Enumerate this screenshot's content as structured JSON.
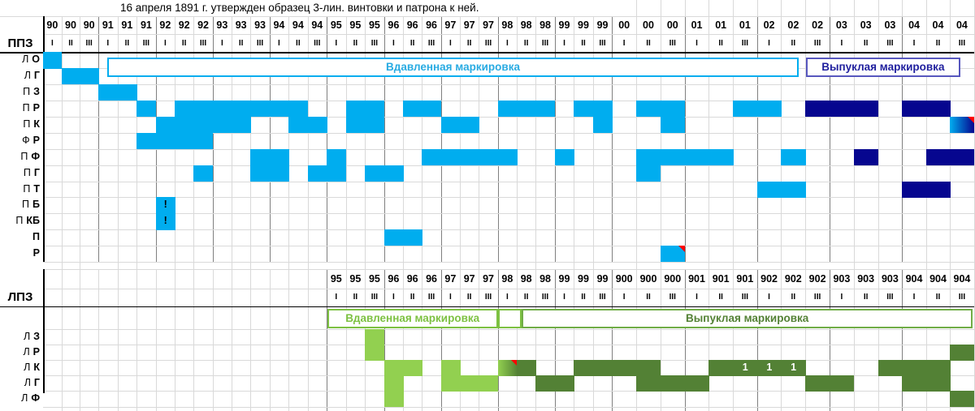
{
  "colors": {
    "impressed_blue": "#00ADEF",
    "raised_navy": "#06068F",
    "impressed_green_light": "#92D050",
    "raised_green_dark": "#538135",
    "flag_red": "#FF0000",
    "grid_faint": "#D9D9D9",
    "grid_year": "#808080",
    "grid_black": "#000000",
    "legend_blue_border": "#00ADEF",
    "legend_blue_text": "#29ABE2",
    "legend_navy_border": "#5757BE",
    "legend_navy_text": "#1F1F9E",
    "legend_green_light": "#7DC142",
    "legend_green_border": "#70AD47",
    "legend_green_dark_text": "#538135"
  },
  "chart_data": {
    "type": "heatmap",
    "title": "16 апреля 1891 г. утвержден образец 3-лин. винтовки и патрона к ней.",
    "x_unit": "year thirds (I, II, III) from 1890 to 1904",
    "grid": true,
    "terts": [
      "I",
      "II",
      "III"
    ],
    "sections": [
      {
        "factory_label": "ППЗ",
        "years": [
          "90",
          "91",
          "92",
          "93",
          "94",
          "95",
          "96",
          "97",
          "98",
          "99",
          "00",
          "01",
          "02",
          "03",
          "04"
        ],
        "terts": [
          "I",
          "II",
          "III"
        ],
        "legend_boxes": [
          {
            "label": "Вдавленная маркировка",
            "style": "blue"
          },
          {
            "label": "Выпуклая маркировка",
            "style": "navy"
          }
        ],
        "rows": [
          {
            "label": "Л О",
            "fills": [
              {
                "style": "cyan",
                "cols": [
                  "90-I"
                ]
              }
            ]
          },
          {
            "label": "Л Г",
            "fills": [
              {
                "style": "cyan",
                "cols": [
                  "90-II",
                  "90-III"
                ]
              }
            ]
          },
          {
            "label": "П З",
            "fills": [
              {
                "style": "cyan",
                "cols": [
                  "91-I",
                  "91-II"
                ]
              }
            ]
          },
          {
            "label": "П Р",
            "fills": [
              {
                "style": "cyan",
                "cols": [
                  "91-III",
                  "92-II",
                  "92-III",
                  "93-I",
                  "93-II",
                  "93-III",
                  "94-I",
                  "94-II",
                  "95-II",
                  "95-III",
                  "96-II",
                  "96-III",
                  "98-I",
                  "98-II",
                  "98-III",
                  "99-II",
                  "99-III",
                  "00-II",
                  "00-III",
                  "01-III",
                  "02-I"
                ]
              },
              {
                "style": "navy",
                "cols": [
                  "02-III",
                  "03-I",
                  "03-II",
                  "04-I",
                  "04-II"
                ]
              }
            ]
          },
          {
            "label": "П К",
            "fills": [
              {
                "style": "cyan",
                "cols": [
                  "92-I",
                  "92-II",
                  "92-III",
                  "93-I",
                  "93-II",
                  "94-II",
                  "94-III",
                  "95-II",
                  "95-III",
                  "97-I",
                  "97-II",
                  "99-III",
                  "00-III"
                ]
              },
              {
                "style": "gradient_cyan_navy",
                "cols": [
                  "04-III"
                ],
                "corner": "red"
              }
            ]
          },
          {
            "label": "Ф Р",
            "fills": [
              {
                "style": "cyan",
                "cols": [
                  "91-III",
                  "92-I",
                  "92-II",
                  "92-III"
                ]
              }
            ]
          },
          {
            "label": "П Ф",
            "fills": [
              {
                "style": "cyan",
                "cols": [
                  "93-III",
                  "94-I",
                  "95-I",
                  "96-III",
                  "97-I",
                  "97-II",
                  "97-III",
                  "98-I",
                  "99-I",
                  "00-II",
                  "00-III",
                  "01-I",
                  "01-II",
                  "02-II"
                ]
              },
              {
                "style": "navy",
                "cols": [
                  "03-II",
                  "04-II",
                  "04-III"
                ]
              }
            ]
          },
          {
            "label": "П Г",
            "fills": [
              {
                "style": "cyan",
                "cols": [
                  "92-III",
                  "93-III",
                  "94-I",
                  "94-III",
                  "95-I",
                  "95-III",
                  "96-I",
                  "00-II"
                ]
              }
            ]
          },
          {
            "label": "П Т",
            "fills": [
              {
                "style": "cyan",
                "cols": [
                  "02-I",
                  "02-II"
                ]
              },
              {
                "style": "navy",
                "cols": [
                  "04-I",
                  "04-II"
                ]
              }
            ]
          },
          {
            "label": "П Б",
            "fills": [
              {
                "style": "cyan",
                "cols": [
                  "92-I"
                ],
                "text": "!"
              }
            ]
          },
          {
            "label": "П КБ",
            "fills": [
              {
                "style": "cyan",
                "cols": [
                  "92-I"
                ],
                "text": "!"
              }
            ]
          },
          {
            "label": "П",
            "fills": [
              {
                "style": "cyan",
                "cols": [
                  "96-I",
                  "96-II"
                ]
              }
            ]
          },
          {
            "label": "Р",
            "fills": [
              {
                "style": "cyan",
                "cols": [
                  "00-III"
                ],
                "corner": "red"
              }
            ]
          }
        ]
      },
      {
        "factory_label": "ЛПЗ",
        "years": [
          "95",
          "96",
          "97",
          "98",
          "99",
          "900",
          "901",
          "902",
          "903",
          "904"
        ],
        "terts": [
          "I",
          "II",
          "III"
        ],
        "legend_boxes": [
          {
            "label": "Вдавленная маркировка",
            "style": "green_light"
          },
          {
            "label": "",
            "style": "green_light"
          },
          {
            "label": "Выпуклая маркировка",
            "style": "green_dark"
          }
        ],
        "rows": [
          {
            "label": "Л З",
            "fills": [
              {
                "style": "green_light",
                "cols": [
                  "95-III"
                ]
              }
            ]
          },
          {
            "label": "Л Р",
            "fills": [
              {
                "style": "green_light",
                "cols": [
                  "95-III"
                ]
              },
              {
                "style": "green_dark",
                "cols": [
                  "904-III"
                ]
              }
            ]
          },
          {
            "label": "Л К",
            "fills": [
              {
                "style": "green_light",
                "cols": [
                  "96-I",
                  "96-II",
                  "97-I"
                ]
              },
              {
                "style": "gradient_green",
                "cols": [
                  "98-I"
                ],
                "corner": "red"
              },
              {
                "style": "green_dark",
                "cols": [
                  "98-II",
                  "99-II",
                  "99-III",
                  "900-I",
                  "900-II",
                  "901-II",
                  "903-III",
                  "904-I",
                  "904-II"
                ]
              },
              {
                "style": "green_dark",
                "cols": [
                  "901-III",
                  "902-I",
                  "902-II"
                ],
                "text": "1"
              }
            ]
          },
          {
            "label": "Л Г",
            "fills": [
              {
                "style": "green_light",
                "cols": [
                  "96-I",
                  "97-I",
                  "97-II",
                  "97-III"
                ]
              },
              {
                "style": "green_dark",
                "cols": [
                  "98-III",
                  "99-I",
                  "900-II",
                  "900-III",
                  "901-I",
                  "902-III",
                  "903-I",
                  "904-I",
                  "904-II"
                ]
              }
            ]
          },
          {
            "label": "Л Ф",
            "fills": [
              {
                "style": "green_light",
                "cols": [
                  "96-I"
                ]
              },
              {
                "style": "green_dark",
                "cols": [
                  "904-III"
                ]
              }
            ]
          }
        ]
      }
    ]
  }
}
